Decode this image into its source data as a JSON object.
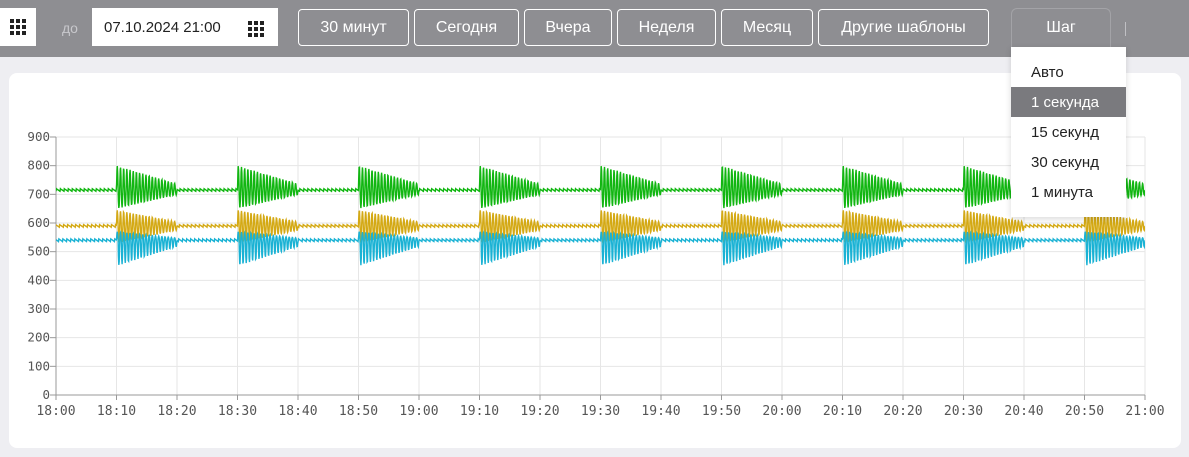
{
  "toolbar": {
    "to_label": "до",
    "date_value": "07.10.2024 21:00",
    "presets": [
      "30 минут",
      "Сегодня",
      "Вчера",
      "Неделя",
      "Месяц",
      "Другие шаблоны"
    ],
    "step_label": "Шаг",
    "colors": {
      "bar_bg": "#8e8e92",
      "button_border": "#ffffff"
    }
  },
  "step_menu": {
    "options": [
      "Авто",
      "1 секунда",
      "15 секунд",
      "30 секунд",
      "1 минута"
    ],
    "selected": "1 секунда"
  },
  "chart_data": {
    "type": "line",
    "ylim": [
      0,
      900
    ],
    "y_ticks": [
      0,
      100,
      200,
      300,
      400,
      500,
      600,
      700,
      800,
      900
    ],
    "x_range": [
      "18:00",
      "21:00"
    ],
    "x_ticks": [
      "18:00",
      "18:10",
      "18:20",
      "18:30",
      "18:40",
      "18:50",
      "19:00",
      "19:10",
      "19:20",
      "19:30",
      "19:40",
      "19:50",
      "20:00",
      "20:10",
      "20:20",
      "20:30",
      "20:40",
      "20:50",
      "21:00"
    ],
    "grid": true,
    "legend": "none",
    "series": [
      {
        "color": "#11b611",
        "baseline": 715,
        "burst_high": 800,
        "burst_low": 650
      },
      {
        "color": "#d4a914",
        "baseline": 590,
        "burst_high": 645,
        "burst_low": 530
      },
      {
        "color": "#1ab2d4",
        "baseline": 540,
        "burst_high": 570,
        "burst_low": 450
      }
    ],
    "bursts": [
      {
        "start": "18:10",
        "end": "18:20"
      },
      {
        "start": "18:30",
        "end": "18:40"
      },
      {
        "start": "18:50",
        "end": "19:00"
      },
      {
        "start": "19:10",
        "end": "19:20"
      },
      {
        "start": "19:30",
        "end": "19:40"
      },
      {
        "start": "19:50",
        "end": "20:00"
      },
      {
        "start": "20:10",
        "end": "20:20"
      },
      {
        "start": "20:30",
        "end": "20:40"
      },
      {
        "start": "20:50",
        "end": "21:00"
      }
    ]
  }
}
